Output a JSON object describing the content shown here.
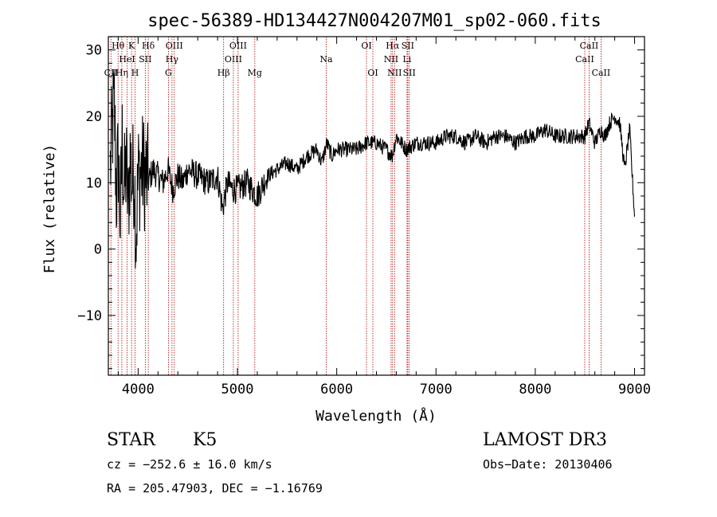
{
  "chart_data": {
    "type": "line",
    "title": "spec-56389-HD134427N004207M01_sp02-060.fits",
    "xlabel": "Wavelength (Å)",
    "ylabel": "Flux (relative)",
    "xlim": [
      3700,
      9100
    ],
    "ylim": [
      -19,
      32
    ],
    "xticks": [
      4000,
      5000,
      6000,
      7000,
      8000,
      9000
    ],
    "yticks": [
      -10,
      0,
      10,
      20,
      30
    ],
    "xtick_labels": [
      "4000",
      "5000",
      "6000",
      "7000",
      "8000",
      "9000"
    ],
    "ytick_labels": [
      "−10",
      "0",
      "10",
      "20",
      "30"
    ],
    "series": [
      {
        "name": "spectrum",
        "color": "#000000",
        "x": [
          3720,
          3740,
          3760,
          3780,
          3800,
          3820,
          3840,
          3860,
          3880,
          3900,
          3920,
          3940,
          3960,
          3980,
          4000,
          4050,
          4100,
          4150,
          4200,
          4250,
          4300,
          4350,
          4400,
          4450,
          4500,
          4600,
          4700,
          4800,
          4850,
          4900,
          4950,
          5000,
          5100,
          5200,
          5300,
          5400,
          5500,
          5600,
          5700,
          5800,
          5850,
          5900,
          5950,
          6000,
          6100,
          6200,
          6300,
          6400,
          6500,
          6560,
          6600,
          6700,
          6800,
          6900,
          7000,
          7100,
          7200,
          7300,
          7400,
          7500,
          7600,
          7700,
          7800,
          7900,
          8000,
          8100,
          8200,
          8300,
          8400,
          8500,
          8540,
          8600,
          8660,
          8700,
          8750,
          8800,
          8850,
          8900,
          8950,
          9000
        ],
        "y": [
          12,
          18,
          22,
          8,
          14,
          4,
          16,
          8,
          13,
          6,
          14,
          10,
          12,
          2,
          11,
          12,
          10,
          12,
          11,
          10,
          12,
          9,
          11,
          10,
          12,
          11,
          10,
          11,
          6,
          10,
          9,
          9,
          10,
          8,
          11,
          12,
          13,
          12,
          14,
          15,
          13,
          16,
          14,
          15,
          15,
          15,
          16,
          16,
          15,
          14,
          17,
          15,
          16,
          16,
          16,
          17,
          17,
          16,
          17,
          16,
          17,
          17,
          16,
          17,
          17,
          18,
          17,
          17,
          17,
          17,
          19,
          16,
          18,
          17,
          19,
          20,
          19,
          12,
          18,
          5
        ]
      }
    ],
    "line_markers": [
      {
        "name": "CII",
        "x": 3726,
        "row": "lower"
      },
      {
        "name": "Hθ",
        "x": 3798,
        "row": "upper"
      },
      {
        "name": "Hη",
        "x": 3836,
        "row": "lower"
      },
      {
        "name": "HeI",
        "x": 3889,
        "row": "middle"
      },
      {
        "name": "K",
        "x": 3934,
        "row": "upper"
      },
      {
        "name": "H",
        "x": 3969,
        "row": "lower"
      },
      {
        "name": "SII",
        "x": 4072,
        "row": "middle"
      },
      {
        "name": "Hδ",
        "x": 4102,
        "row": "upper"
      },
      {
        "name": "G",
        "x": 4305,
        "row": "lower"
      },
      {
        "name": "Hγ",
        "x": 4341,
        "row": "middle"
      },
      {
        "name": "OIII",
        "x": 4364,
        "row": "upper"
      },
      {
        "name": "Hβ",
        "x": 4861,
        "row": "lower"
      },
      {
        "name": "OIII",
        "x": 4959,
        "row": "middle"
      },
      {
        "name": "OIII",
        "x": 5007,
        "row": "upper"
      },
      {
        "name": "Mg",
        "x": 5175,
        "row": "lower"
      },
      {
        "name": "Na",
        "x": 5894,
        "row": "middle"
      },
      {
        "name": "OI",
        "x": 6300,
        "row": "upper"
      },
      {
        "name": "OI",
        "x": 6364,
        "row": "lower"
      },
      {
        "name": "NII",
        "x": 6548,
        "row": "middle"
      },
      {
        "name": "Hα",
        "x": 6563,
        "row": "upper"
      },
      {
        "name": "NII",
        "x": 6583,
        "row": "lower"
      },
      {
        "name": "Li",
        "x": 6708,
        "row": "middle"
      },
      {
        "name": "SII",
        "x": 6716,
        "row": "upper"
      },
      {
        "name": "SII",
        "x": 6731,
        "row": "lower"
      },
      {
        "name": "CaII",
        "x": 8498,
        "row": "middle"
      },
      {
        "name": "CaII",
        "x": 8542,
        "row": "upper"
      },
      {
        "name": "CaII",
        "x": 8662,
        "row": "lower"
      }
    ]
  },
  "info": {
    "object_class": "STAR",
    "subclass": "K5",
    "survey": "LAMOST DR3",
    "cz": "cz = −252.6 ± 16.0 km/s",
    "obs_date": "Obs−Date: 20130406",
    "coords": "RA = 205.47903, DEC =  −1.16769"
  }
}
